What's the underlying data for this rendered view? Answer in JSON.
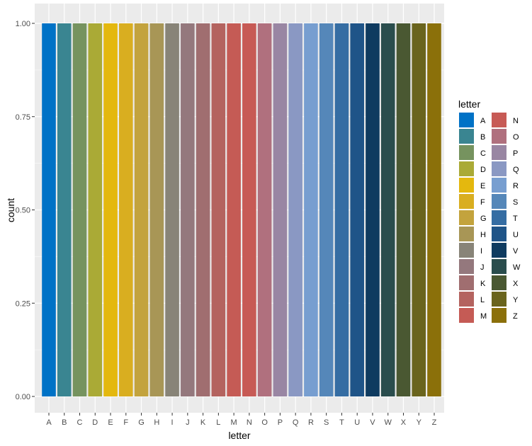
{
  "chart_data": {
    "type": "bar",
    "title": "",
    "xlabel": "letter",
    "ylabel": "count",
    "ylim": [
      0,
      1
    ],
    "yticks": [
      0.0,
      0.25,
      0.5,
      0.75,
      1.0
    ],
    "ytick_labels": [
      "0.00",
      "0.25",
      "0.50",
      "0.75",
      "1.00"
    ],
    "grid": true,
    "categories": [
      "A",
      "B",
      "C",
      "D",
      "E",
      "F",
      "G",
      "H",
      "I",
      "J",
      "K",
      "L",
      "M",
      "N",
      "O",
      "P",
      "Q",
      "R",
      "S",
      "T",
      "U",
      "V",
      "W",
      "X",
      "Y",
      "Z"
    ],
    "values": [
      1,
      1,
      1,
      1,
      1,
      1,
      1,
      1,
      1,
      1,
      1,
      1,
      1,
      1,
      1,
      1,
      1,
      1,
      1,
      1,
      1,
      1,
      1,
      1,
      1,
      1
    ],
    "colors": [
      "#0072c6",
      "#3a8591",
      "#76935f",
      "#aaaa36",
      "#e4b80e",
      "#d9ae20",
      "#c3a33d",
      "#a89656",
      "#888478",
      "#94787d",
      "#a06e70",
      "#b4635f",
      "#c55b55",
      "#c75a55",
      "#b0707e",
      "#9986a3",
      "#8a98c3",
      "#779ed0",
      "#5587b9",
      "#356da3",
      "#1f5488",
      "#0f3b60",
      "#2a4d4d",
      "#4a5832",
      "#6a641d",
      "#8b700a"
    ],
    "legend": {
      "title": "letter",
      "position": "right",
      "columns": 2
    }
  }
}
